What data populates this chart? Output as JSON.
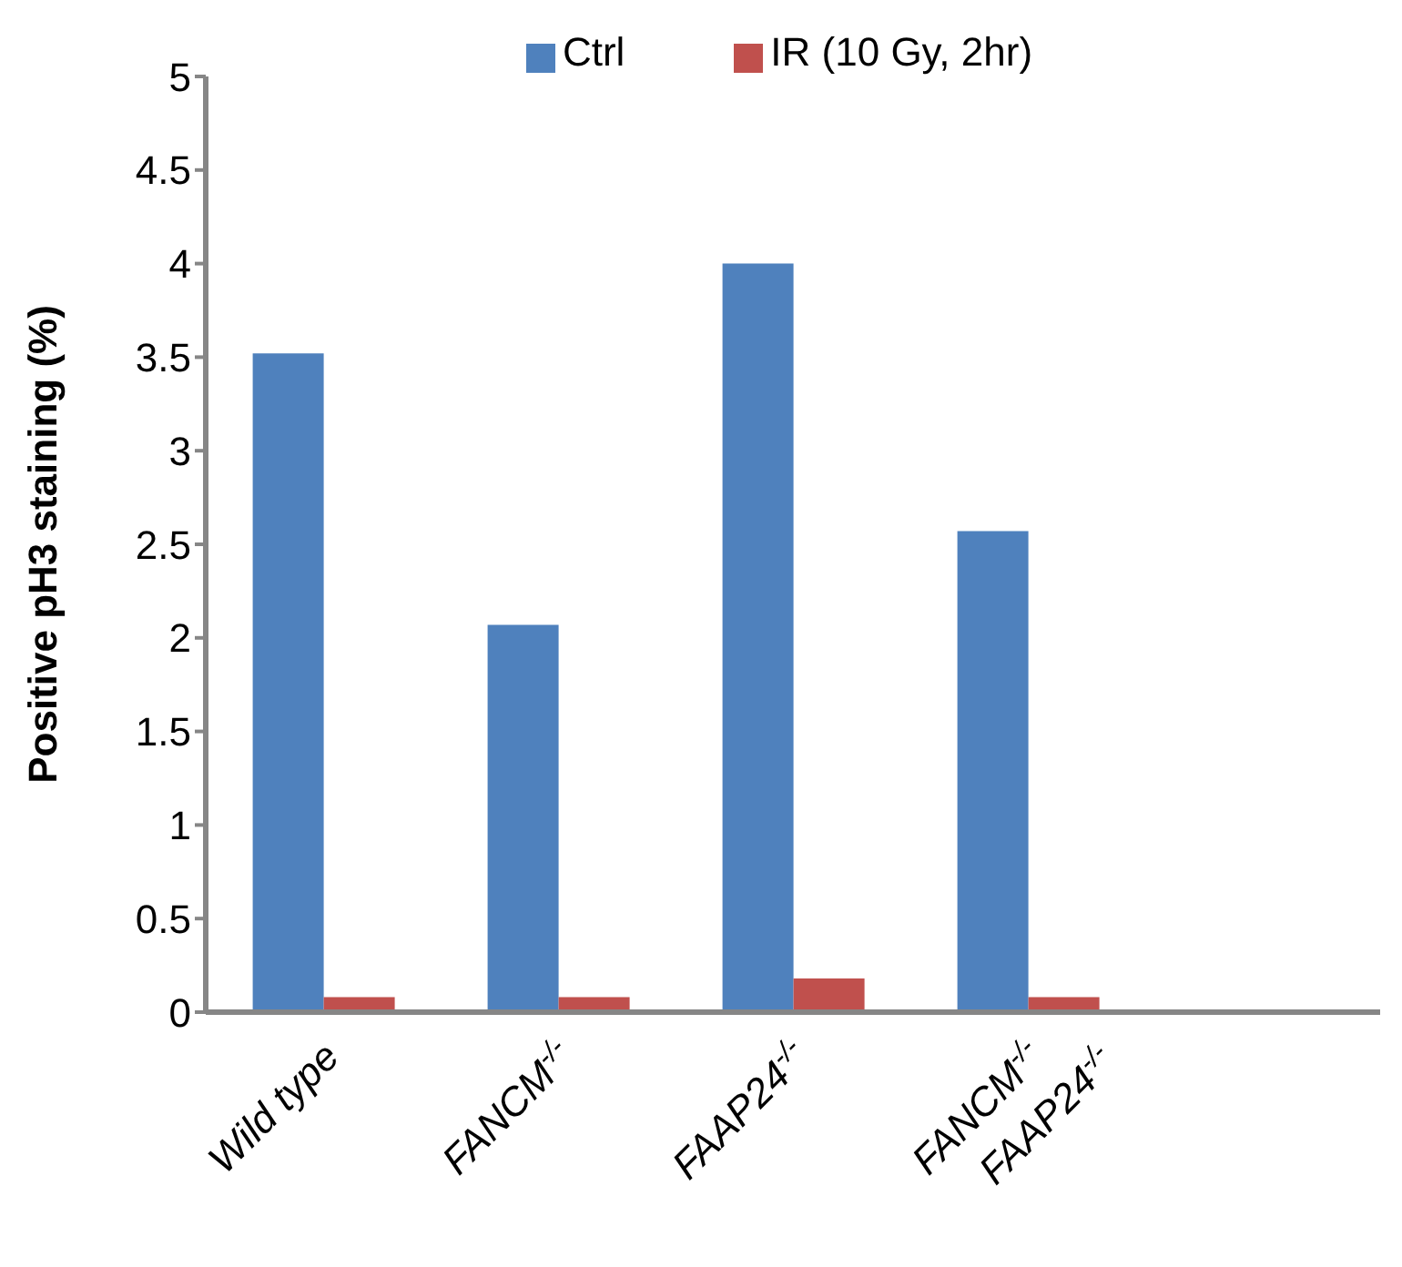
{
  "chart_data": {
    "type": "bar",
    "ylabel": "Positive pH3 staining (%)",
    "categories": [
      "Wild type",
      "FANCM$^{-/-}$",
      "FAAP24$^{-/-}$",
      "FANCM$^{-/-}$\nFAAP24$^{-/-}$",
      null
    ],
    "series": [
      {
        "name": "Ctrl",
        "color": "#4f81bd",
        "values": [
          3.52,
          2.07,
          4.0,
          2.57,
          null
        ]
      },
      {
        "name": "IR (10 Gy, 2hr)",
        "color": "#c0504d",
        "values": [
          0.08,
          0.08,
          0.18,
          0.08,
          null
        ]
      }
    ],
    "ylim": [
      0,
      5
    ],
    "yticks": [
      0,
      0.5,
      1,
      1.5,
      2,
      2.5,
      3,
      3.5,
      4,
      4.5,
      5
    ],
    "grid": false,
    "legend": "top"
  }
}
